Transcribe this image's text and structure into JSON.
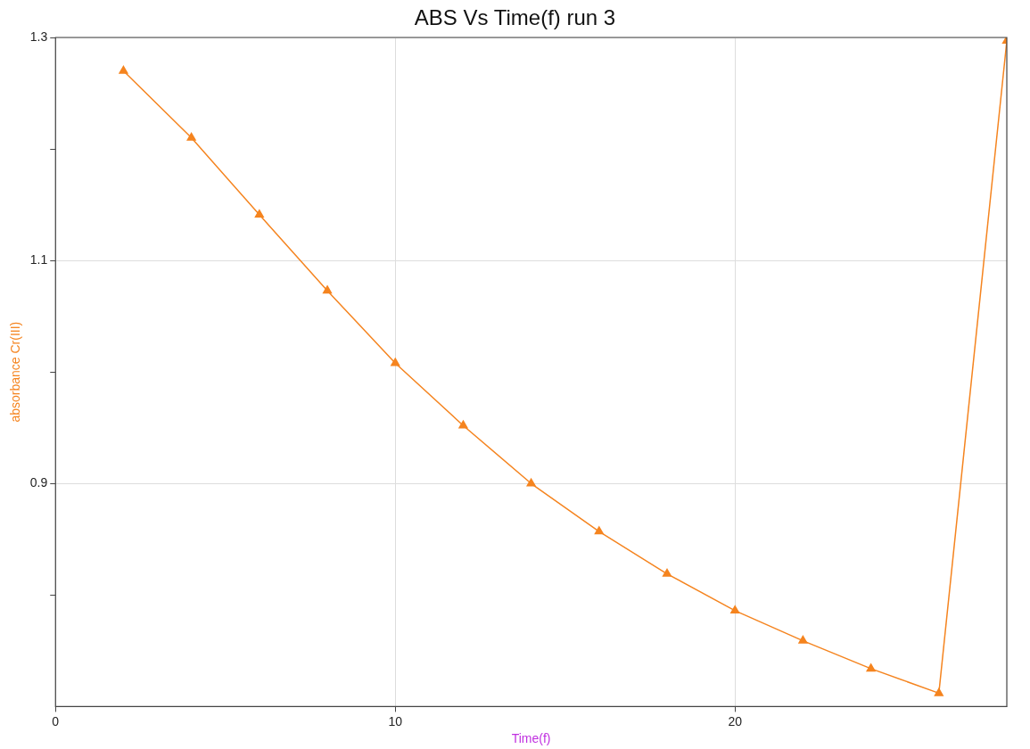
{
  "chart_data": {
    "type": "line",
    "title": "ABS Vs Time(f) run 3",
    "xlabel": "Time(f)",
    "ylabel": "absorbance Cr(III)",
    "series": [
      {
        "color": "#f5841f",
        "x": [
          2,
          4,
          6,
          8,
          10,
          12,
          14,
          16,
          18,
          20,
          22,
          24,
          26,
          28
        ],
        "values": [
          1.27,
          1.21,
          1.141,
          1.073,
          1.008,
          0.952,
          0.9,
          0.857,
          0.819,
          0.786,
          0.759,
          0.734,
          0.712,
          1.297
        ]
      }
    ],
    "xlim": [
      0,
      28
    ],
    "xticks": [
      0,
      10,
      20
    ],
    "ylim": [
      0.7,
      1.3
    ],
    "yticks": [
      {
        "value": 0.8,
        "label": null
      },
      0.9,
      {
        "value": 1.0,
        "label": null
      },
      1.1,
      {
        "value": 1.2,
        "label": null
      },
      1.3
    ],
    "grid": true,
    "legend": false,
    "marker": "triangle",
    "line_style": "solid"
  }
}
